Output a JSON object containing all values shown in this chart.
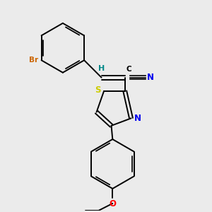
{
  "background_color": "#ebebeb",
  "bond_color": "#000000",
  "atom_colors": {
    "Br": "#cc6600",
    "S": "#cccc00",
    "N_thiazole": "#0000ee",
    "N_CN": "#0000ee",
    "H": "#008888",
    "O": "#ff0000",
    "C": "#000000"
  },
  "lw": 1.4
}
